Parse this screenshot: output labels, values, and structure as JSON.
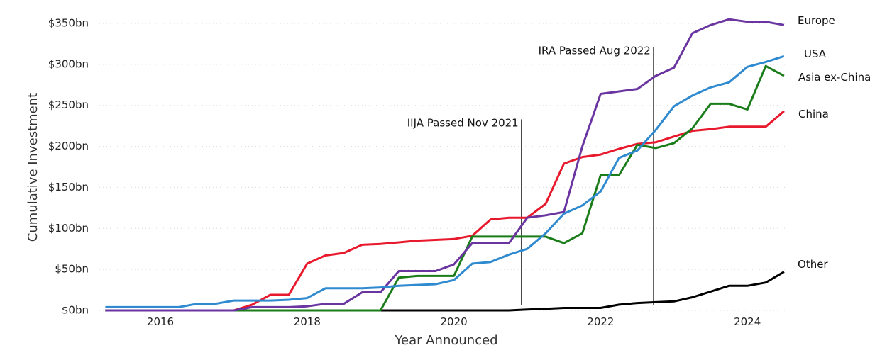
{
  "chart_data": {
    "type": "line",
    "title": "",
    "xlabel": "Year Announced",
    "ylabel": "Cumulative Investment",
    "xlim": [
      2015.2,
      2024.9
    ],
    "ylim": [
      0,
      350
    ],
    "grid": true,
    "x_ticks": [
      {
        "value": 2016,
        "label": "2016"
      },
      {
        "value": 2018,
        "label": "2018"
      },
      {
        "value": 2020,
        "label": "2020"
      },
      {
        "value": 2022,
        "label": "2022"
      },
      {
        "value": 2024,
        "label": "2024"
      }
    ],
    "y_ticks": [
      {
        "value": 0,
        "label": "$0bn"
      },
      {
        "value": 50,
        "label": "$50bn"
      },
      {
        "value": 100,
        "label": "$100bn"
      },
      {
        "value": 150,
        "label": "$150bn"
      },
      {
        "value": 200,
        "label": "$200bn"
      },
      {
        "value": 250,
        "label": "$250bn"
      },
      {
        "value": 300,
        "label": "$300bn"
      },
      {
        "value": 350,
        "label": "$350bn"
      }
    ],
    "x": [
      2015.25,
      2015.5,
      2015.75,
      2016.0,
      2016.25,
      2016.5,
      2016.75,
      2017.0,
      2017.25,
      2017.5,
      2017.75,
      2018.0,
      2018.25,
      2018.5,
      2018.75,
      2019.0,
      2019.25,
      2019.5,
      2019.75,
      2020.0,
      2020.25,
      2020.5,
      2020.75,
      2021.0,
      2021.25,
      2021.5,
      2021.75,
      2022.0,
      2022.25,
      2022.5,
      2022.75,
      2023.0,
      2023.25,
      2023.5,
      2023.75,
      2024.0,
      2024.25,
      2024.5
    ],
    "series": [
      {
        "name": "Europe",
        "label": "Europe",
        "color": "#6a35a0",
        "values": [
          0,
          0,
          0,
          0,
          0,
          0,
          0,
          0,
          4,
          4,
          4,
          5,
          8,
          8,
          22,
          22,
          48,
          48,
          48,
          56,
          82,
          82,
          82,
          113,
          116,
          120,
          200,
          264,
          267,
          270,
          286,
          296,
          338,
          348,
          355,
          352,
          352,
          348
        ]
      },
      {
        "name": "USA",
        "label": "USA",
        "color": "#2f8ad0",
        "values": [
          4,
          4,
          4,
          4,
          4,
          8,
          8,
          12,
          12,
          12,
          13,
          15,
          27,
          27,
          27,
          28,
          30,
          31,
          32,
          37,
          57,
          59,
          68,
          75,
          94,
          118,
          128,
          145,
          186,
          195,
          220,
          249,
          262,
          272,
          278,
          297,
          303,
          310
        ]
      },
      {
        "name": "Asia ex-China",
        "label": "Asia ex-China",
        "color": "#1a7d1a",
        "values": [
          0,
          0,
          0,
          0,
          0,
          0,
          0,
          0,
          0,
          0,
          0,
          0,
          0,
          0,
          0,
          0,
          40,
          42,
          42,
          42,
          90,
          90,
          90,
          90,
          90,
          82,
          94,
          165,
          165,
          202,
          198,
          204,
          222,
          252,
          252,
          245,
          298,
          286
        ]
      },
      {
        "name": "China",
        "label": "China",
        "color": "#e8192c",
        "values": [
          0,
          0,
          0,
          0,
          0,
          0,
          0,
          0,
          7,
          19,
          19,
          57,
          67,
          70,
          80,
          81,
          83,
          85,
          86,
          87,
          91,
          111,
          113,
          113,
          130,
          179,
          187,
          190,
          197,
          203,
          205,
          212,
          219,
          221,
          224,
          224,
          224,
          243
        ]
      },
      {
        "name": "Other",
        "label": "Other",
        "color": "#000000",
        "values": [
          0,
          0,
          0,
          0,
          0,
          0,
          0,
          0,
          0,
          0,
          0,
          0,
          0,
          0,
          0,
          0,
          0,
          0,
          0,
          0,
          0,
          0,
          0,
          1,
          2,
          3,
          3,
          3,
          7,
          9,
          10,
          11,
          16,
          23,
          30,
          30,
          34,
          47
        ]
      }
    ],
    "annotations": [
      {
        "label": "IIJA Passed Nov 2021",
        "x": 2020.92,
        "y_top": 233
      },
      {
        "label": "IRA Passed Aug 2022",
        "x": 2022.72,
        "y_top": 321
      }
    ]
  }
}
